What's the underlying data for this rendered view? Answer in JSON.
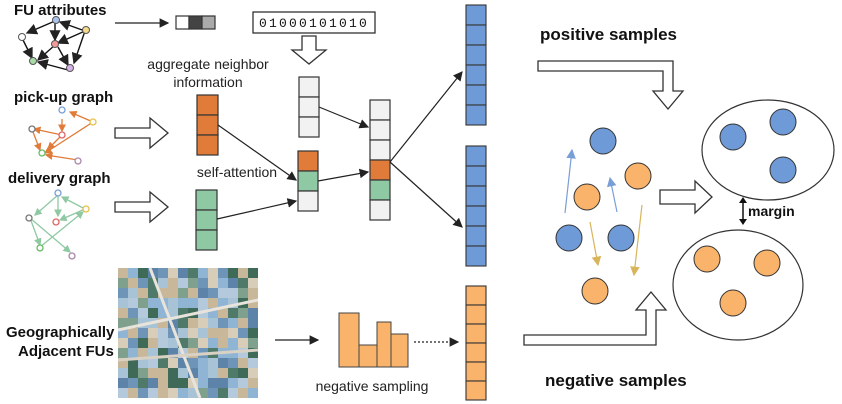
{
  "labels": {
    "fu_attributes": "FU attributes",
    "pickup_graph": "pick-up graph",
    "delivery_graph": "delivery graph",
    "geo_line1": "Geographically",
    "geo_line2": "Adjacent FUs",
    "aggregate_line1": "aggregate neighbor",
    "aggregate_line2": "information",
    "self_attention": "self-attention",
    "binary_code": "01000101010",
    "negative_sampling": "negative sampling",
    "positive_samples": "positive samples",
    "negative_samples": "negative samples",
    "margin": "margin"
  },
  "colors": {
    "orange": "#e07b39",
    "green": "#8fc9a3",
    "blue": "#6f9ad8",
    "light_orange": "#f9b36b",
    "gray": "#f2f2f2",
    "arrow_blue": "#7a9fd6",
    "arrow_yellow": "#d9b45a"
  },
  "icons": [
    "fu-graph-icon",
    "pickup-graph-icon",
    "delivery-graph-icon",
    "satellite-map-image",
    "histogram-icon"
  ]
}
